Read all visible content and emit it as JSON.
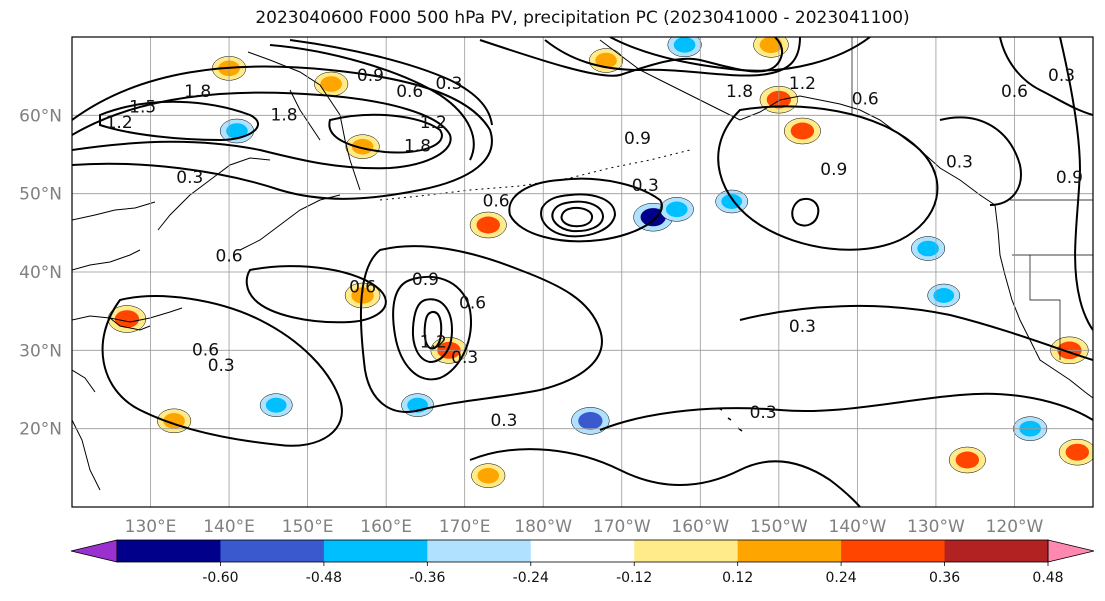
{
  "title": "2023040600 F000 500 hPa PV, precipitation PC (2023041000 - 2023041100)",
  "axes": {
    "lat_labels": [
      "60°N",
      "50°N",
      "40°N",
      "30°N",
      "20°N"
    ],
    "lon_labels": [
      "130°E",
      "140°E",
      "150°E",
      "160°E",
      "170°E",
      "180°W",
      "170°W",
      "160°W",
      "150°W",
      "140°W",
      "130°W",
      "120°W"
    ],
    "grid": true,
    "lat_range": [
      10,
      70
    ],
    "lon_range": [
      120,
      250
    ]
  },
  "colorbar": {
    "colors": [
      "#9a30d0",
      "#00008b",
      "#3a59cf",
      "#00bfff",
      "#b0e2ff",
      "#ffffff",
      "#ffeb8a",
      "#ffa500",
      "#ff4500",
      "#b22222",
      "#ff88b0"
    ],
    "tick_labels": [
      "-0.60",
      "-0.48",
      "-0.36",
      "-0.24",
      "-0.12",
      "0.12",
      "0.24",
      "0.36",
      "0.48",
      "0.60"
    ],
    "levels": [
      -0.6,
      -0.48,
      -0.36,
      -0.24,
      -0.12,
      0.12,
      0.24,
      0.36,
      0.48,
      0.6
    ],
    "extend": "both"
  },
  "contour_labels": [
    {
      "text": "1.8",
      "lon": 136,
      "lat": 63
    },
    {
      "text": "1.5",
      "lon": 129,
      "lat": 61
    },
    {
      "text": "1.2",
      "lon": 126,
      "lat": 59
    },
    {
      "text": "0.9",
      "lon": 158,
      "lat": 65
    },
    {
      "text": "0.6",
      "lon": 163,
      "lat": 63
    },
    {
      "text": "0.3",
      "lon": 168,
      "lat": 64
    },
    {
      "text": "1.8",
      "lon": 147,
      "lat": 60
    },
    {
      "text": "1.2",
      "lon": 166,
      "lat": 59
    },
    {
      "text": "1.8",
      "lon": 164,
      "lat": 56
    },
    {
      "text": "0.3",
      "lon": 135,
      "lat": 52
    },
    {
      "text": "0.6",
      "lon": 140,
      "lat": 42
    },
    {
      "text": "0.6",
      "lon": 174,
      "lat": 49
    },
    {
      "text": "0.3",
      "lon": 193,
      "lat": 51
    },
    {
      "text": "0.9",
      "lon": 192,
      "lat": 57
    },
    {
      "text": "1.8",
      "lon": 205,
      "lat": 63
    },
    {
      "text": "1.2",
      "lon": 213,
      "lat": 64
    },
    {
      "text": "0.6",
      "lon": 221,
      "lat": 62
    },
    {
      "text": "0.9",
      "lon": 217,
      "lat": 53
    },
    {
      "text": "0.3",
      "lon": 233,
      "lat": 54
    },
    {
      "text": "0.6",
      "lon": 240,
      "lat": 63
    },
    {
      "text": "0.3",
      "lon": 246,
      "lat": 65
    },
    {
      "text": "0.6",
      "lon": 157,
      "lat": 38
    },
    {
      "text": "0.9",
      "lon": 165,
      "lat": 39
    },
    {
      "text": "0.6",
      "lon": 171,
      "lat": 36
    },
    {
      "text": "1.2",
      "lon": 166,
      "lat": 31
    },
    {
      "text": "0.3",
      "lon": 170,
      "lat": 29
    },
    {
      "text": "0.6",
      "lon": 137,
      "lat": 30
    },
    {
      "text": "0.3",
      "lon": 139,
      "lat": 28
    },
    {
      "text": "0.3",
      "lon": 175,
      "lat": 21
    },
    {
      "text": "0.3",
      "lon": 213,
      "lat": 33
    },
    {
      "text": "0.3",
      "lon": 208,
      "lat": 22
    },
    {
      "text": "0.9",
      "lon": 247,
      "lat": 52
    }
  ],
  "precip_patches": [
    {
      "lon": 133,
      "lat": 21,
      "value": 0.3
    },
    {
      "lon": 140,
      "lat": 66,
      "value": 0.3
    },
    {
      "lon": 141,
      "lat": 58,
      "value": -0.3
    },
    {
      "lon": 153,
      "lat": 64,
      "value": 0.3
    },
    {
      "lon": 157,
      "lat": 56,
      "value": 0.3
    },
    {
      "lon": 173,
      "lat": 46,
      "value": 0.4
    },
    {
      "lon": 168,
      "lat": 30,
      "value": 0.4
    },
    {
      "lon": 157,
      "lat": 37,
      "value": 0.35
    },
    {
      "lon": 127,
      "lat": 34,
      "value": 0.45
    },
    {
      "lon": 194,
      "lat": 47,
      "value": -0.5
    },
    {
      "lon": 197,
      "lat": 48,
      "value": -0.3
    },
    {
      "lon": 204,
      "lat": 49,
      "value": -0.25
    },
    {
      "lon": 186,
      "lat": 21,
      "value": -0.45
    },
    {
      "lon": 198,
      "lat": 69,
      "value": -0.3
    },
    {
      "lon": 210,
      "lat": 62,
      "value": 0.45
    },
    {
      "lon": 213,
      "lat": 58,
      "value": 0.4
    },
    {
      "lon": 209,
      "lat": 69,
      "value": 0.35
    },
    {
      "lon": 229,
      "lat": 43,
      "value": -0.3
    },
    {
      "lon": 247,
      "lat": 30,
      "value": 0.45
    },
    {
      "lon": 242,
      "lat": 20,
      "value": -0.3
    },
    {
      "lon": 248,
      "lat": 17,
      "value": 0.4
    },
    {
      "lon": 234,
      "lat": 16,
      "value": 0.4
    },
    {
      "lon": 231,
      "lat": 37,
      "value": -0.25
    },
    {
      "lon": 188,
      "lat": 67,
      "value": 0.3
    },
    {
      "lon": 173,
      "lat": 14,
      "value": 0.3
    },
    {
      "lon": 164,
      "lat": 23,
      "value": -0.25
    },
    {
      "lon": 146,
      "lat": 23,
      "value": -0.25
    }
  ]
}
